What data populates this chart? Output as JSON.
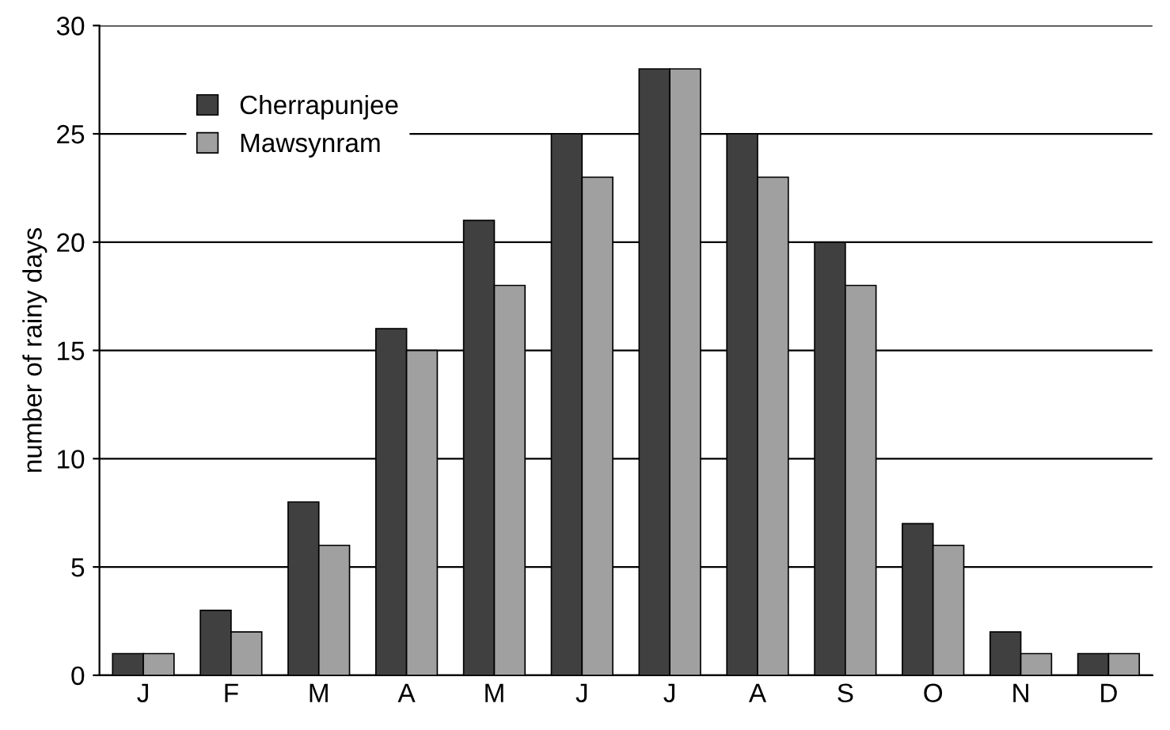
{
  "chart_data": {
    "type": "bar",
    "ylabel": "number of rainy days",
    "categories": [
      "J",
      "F",
      "M",
      "A",
      "M",
      "J",
      "J",
      "A",
      "S",
      "O",
      "N",
      "D"
    ],
    "series": [
      {
        "name": "Cherrapunjee",
        "color": "#404040",
        "values": [
          1,
          3,
          8,
          16,
          21,
          25,
          28,
          25,
          20,
          7,
          2,
          1
        ]
      },
      {
        "name": "Mawsynram",
        "color": "#a0a0a0",
        "values": [
          1,
          2,
          6,
          15,
          18,
          23,
          28,
          23,
          18,
          6,
          1,
          1
        ]
      }
    ],
    "ylim": [
      0,
      30
    ],
    "yticks": [
      0,
      5,
      10,
      15,
      20,
      25,
      30
    ],
    "grid": "y",
    "legend": "top left"
  }
}
